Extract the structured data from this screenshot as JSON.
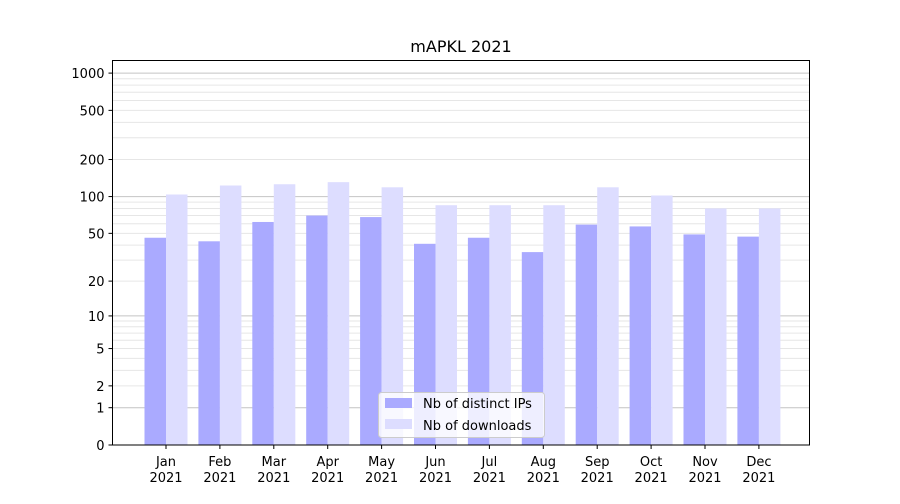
{
  "chart_data": {
    "type": "bar",
    "title": "mAPKL 2021",
    "xlabel": "",
    "ylabel": "",
    "yscale": "log(1+y)",
    "ylim": [
      0,
      1264
    ],
    "yticks": [
      0,
      1,
      2,
      5,
      10,
      20,
      50,
      100,
      200,
      500,
      1000
    ],
    "grid": true,
    "legend_position": "bottom-center",
    "categories": [
      "Jan\n2021",
      "Feb\n2021",
      "Mar\n2021",
      "Apr\n2021",
      "May\n2021",
      "Jun\n2021",
      "Jul\n2021",
      "Aug\n2021",
      "Sep\n2021",
      "Oct\n2021",
      "Nov\n2021",
      "Dec\n2021"
    ],
    "series": [
      {
        "name": "Nb of distinct IPs",
        "color": "#aaaaff",
        "values": [
          46,
          43,
          62,
          70,
          68,
          41,
          46,
          35,
          59,
          57,
          49,
          47
        ]
      },
      {
        "name": "Nb of downloads",
        "color": "#ddddff",
        "values": [
          104,
          123,
          126,
          131,
          119,
          85,
          85,
          85,
          119,
          102,
          80,
          80
        ]
      }
    ]
  }
}
